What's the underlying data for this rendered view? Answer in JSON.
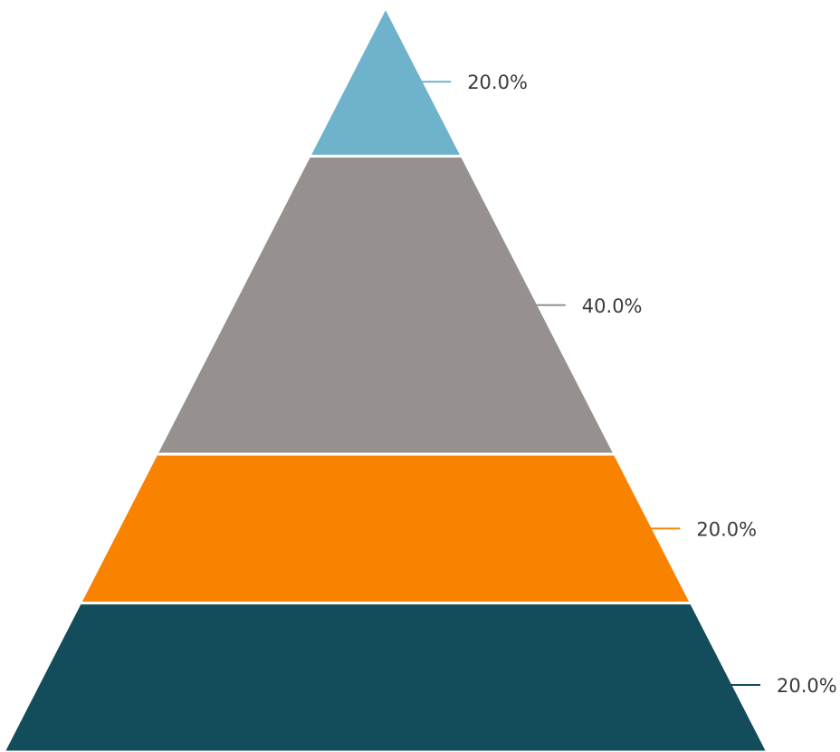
{
  "chart_data": {
    "type": "pyramid",
    "title": "",
    "segments": [
      {
        "value": 20.0,
        "label": "20.0%",
        "color": "#6fb2cc"
      },
      {
        "value": 40.0,
        "label": "40.0%",
        "color": "#96918f"
      },
      {
        "value": 20.0,
        "label": "20.0%",
        "color": "#f98200"
      },
      {
        "value": 20.0,
        "label": "20.0%",
        "color": "#134c5a"
      }
    ]
  }
}
